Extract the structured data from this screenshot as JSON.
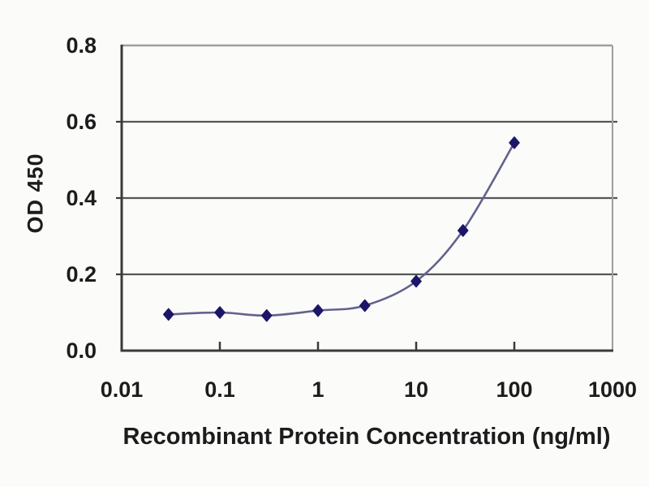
{
  "page": {
    "background": "#fbfbfa"
  },
  "chart_data": {
    "type": "line",
    "title": "",
    "xlabel": "Recombinant Protein Concentration (ng/ml)",
    "ylabel": "OD 450",
    "x_scale": "log",
    "xlim": [
      0.01,
      1000
    ],
    "ylim": [
      0,
      0.8
    ],
    "x_ticks": [
      0.01,
      0.1,
      1,
      10,
      100,
      1000
    ],
    "x_tick_labels": [
      "0.01",
      "0.1",
      "1",
      "10",
      "100",
      "1000"
    ],
    "y_ticks": [
      0,
      0.2,
      0.4,
      0.6,
      0.8
    ],
    "y_tick_labels": [
      "0.0",
      "0.2",
      "0.4",
      "0.6",
      "0.8"
    ],
    "grid": "horizontal-only",
    "legend": "none",
    "series": [
      {
        "name": "OD 450 response curve",
        "marker": "diamond",
        "x": [
          0.03,
          0.1,
          0.3,
          1,
          3,
          10,
          30,
          100
        ],
        "y": [
          0.095,
          0.1,
          0.092,
          0.105,
          0.118,
          0.182,
          0.315,
          0.545
        ]
      }
    ],
    "colors": {
      "line": "#62628f",
      "marker": "#1c1668",
      "gridline": "#555555",
      "axis": "#3a3a3a",
      "border": "#9e9e9e",
      "text": "#1c1c1c"
    }
  }
}
